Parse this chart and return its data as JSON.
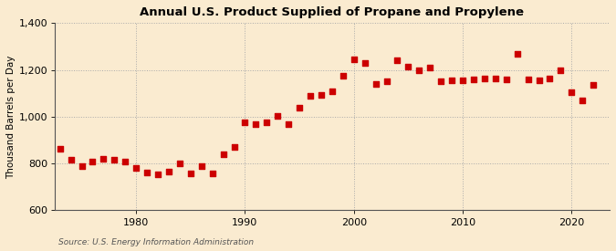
{
  "title": "Annual U.S. Product Supplied of Propane and Propylene",
  "ylabel": "Thousand Barrels per Day",
  "source": "Source: U.S. Energy Information Administration",
  "background_color": "#faebd0",
  "dot_color": "#cc0000",
  "grid_color": "#aaaaaa",
  "years": [
    1973,
    1974,
    1975,
    1976,
    1977,
    1978,
    1979,
    1980,
    1981,
    1982,
    1983,
    1984,
    1985,
    1986,
    1987,
    1988,
    1989,
    1990,
    1991,
    1992,
    1993,
    1994,
    1995,
    1996,
    1997,
    1998,
    1999,
    2000,
    2001,
    2002,
    2003,
    2004,
    2005,
    2006,
    2007,
    2008,
    2009,
    2010,
    2011,
    2012,
    2013,
    2014,
    2015,
    2016,
    2017,
    2018,
    2019,
    2020,
    2021,
    2022
  ],
  "values": [
    862,
    815,
    790,
    810,
    820,
    818,
    808,
    780,
    760,
    752,
    765,
    800,
    758,
    790,
    758,
    840,
    870,
    978,
    967,
    978,
    1005,
    970,
    1040,
    1088,
    1095,
    1110,
    1175,
    1245,
    1230,
    1140,
    1150,
    1240,
    1215,
    1200,
    1210,
    1150,
    1155,
    1155,
    1160,
    1162,
    1162,
    1160,
    1270,
    1160,
    1155,
    1162,
    1200,
    1105,
    1070,
    1135
  ],
  "ylim": [
    600,
    1400
  ],
  "yticks": [
    600,
    800,
    1000,
    1200,
    1400
  ],
  "xlim": [
    1972.5,
    2023.5
  ],
  "xticks": [
    1980,
    1990,
    2000,
    2010,
    2020
  ]
}
